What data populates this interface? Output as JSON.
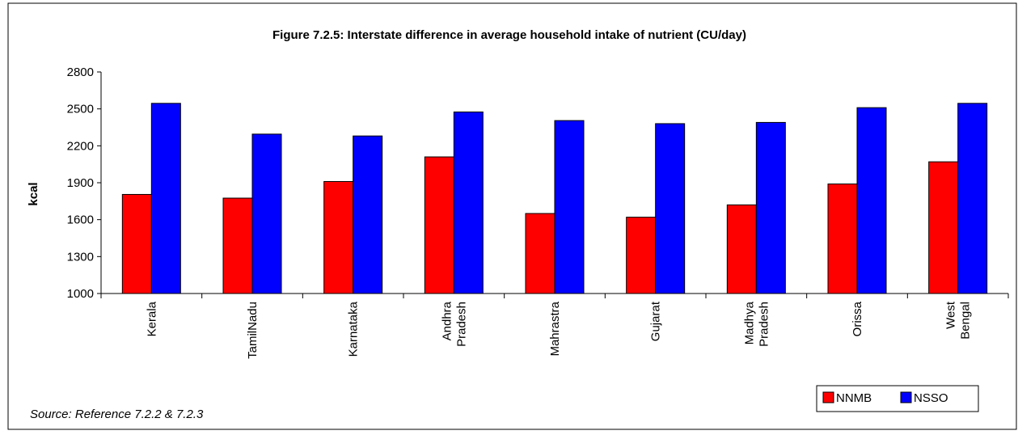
{
  "chart_data": {
    "type": "bar",
    "title": "Figure 7.2.5: Interstate difference in average household intake of nutrient (CU/day)",
    "ylabel": "kcal",
    "xlabel": "",
    "ylim": [
      1000,
      2800
    ],
    "yticks": [
      "1000",
      "1300",
      "1600",
      "1900",
      "2200",
      "2500",
      "2800"
    ],
    "grid": false,
    "legend_position": "bottom-right",
    "categories": [
      [
        "Kerala"
      ],
      [
        "TamilNadu"
      ],
      [
        "Karnataka"
      ],
      [
        "Andhra",
        "Pradesh"
      ],
      [
        "Mahrastra"
      ],
      [
        "Gujarat"
      ],
      [
        "Madhya",
        "Pradesh"
      ],
      [
        "Orissa"
      ],
      [
        "West",
        "Bengal"
      ]
    ],
    "series": [
      {
        "name": "NNMB",
        "color": "#ff0000",
        "values": [
          1805,
          1775,
          1910,
          2110,
          1650,
          1620,
          1720,
          1890,
          2070
        ]
      },
      {
        "name": "NSSO",
        "color": "#0000ff",
        "values": [
          2545,
          2295,
          2280,
          2475,
          2405,
          2380,
          2390,
          2510,
          2545
        ]
      }
    ],
    "source_note": "Source: Reference 7.2.2 & 7.2.3"
  }
}
